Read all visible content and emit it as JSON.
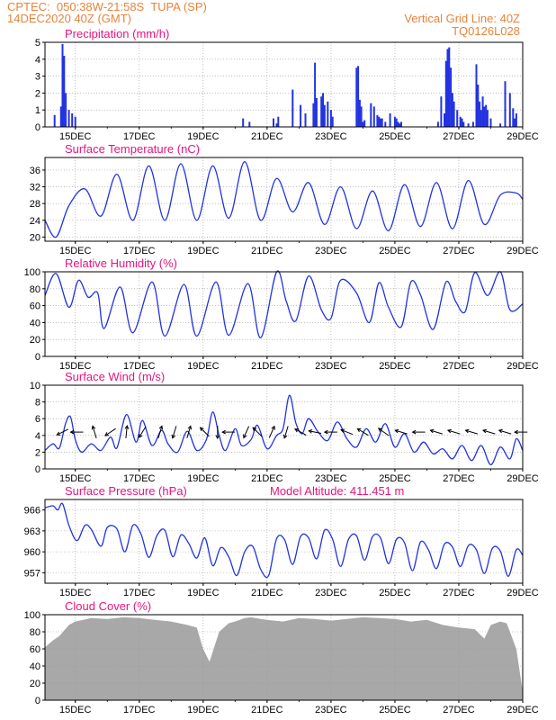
{
  "header": {
    "line1_left": "CPTEC:  050:38W-21:58S  TUPA (SP)",
    "line2_left": "14DEC2020 40Z (GMT)",
    "line1_right": "Vertical Grid Line: 40Z",
    "line2_right": "TQ0126L028"
  },
  "colors": {
    "header": "#e8833a",
    "title": "#e8137f",
    "series": "#2233e0",
    "cloud": "#a8a8a8",
    "grid": "#9a9a9a",
    "arrow": "#000000"
  },
  "x_axis": {
    "tick_labels": [
      "15DEC",
      "17DEC",
      "19DEC",
      "21DEC",
      "23DEC",
      "25DEC",
      "27DEC",
      "29DEC"
    ],
    "tick_days": [
      15,
      17,
      19,
      21,
      23,
      25,
      27,
      29
    ],
    "range_days": [
      14.05,
      29.0
    ]
  },
  "chart_data": [
    {
      "id": "precip",
      "type": "bar",
      "title": "Precipitation (mm/h)",
      "ylim": [
        0,
        5
      ],
      "yticks": [
        0,
        1,
        2,
        3,
        4,
        5
      ],
      "x_days": [
        14.35,
        14.55,
        14.6,
        14.65,
        14.7,
        14.8,
        14.9,
        15.0,
        20.25,
        20.45,
        21.2,
        21.3,
        21.35,
        21.8,
        22.05,
        22.2,
        22.45,
        22.5,
        22.55,
        22.7,
        22.75,
        22.8,
        22.9,
        23.0,
        23.05,
        23.8,
        23.85,
        23.9,
        23.95,
        24.0,
        24.05,
        24.25,
        24.35,
        24.45,
        24.5,
        24.55,
        24.6,
        24.7,
        24.85,
        25.0,
        25.05,
        25.1,
        25.15,
        25.2,
        26.35,
        26.45,
        26.55,
        26.6,
        26.65,
        26.7,
        26.75,
        26.8,
        26.85,
        26.95,
        27.05,
        27.1,
        27.15,
        27.3,
        27.45,
        27.55,
        27.6,
        27.65,
        27.7,
        27.75,
        27.8,
        27.85,
        27.9,
        28.0,
        28.3,
        28.45,
        28.6,
        28.7,
        28.75,
        28.8
      ],
      "values": [
        0.7,
        1.2,
        4.9,
        4.2,
        2.0,
        1.0,
        0.8,
        0.6,
        0.5,
        0.3,
        0.5,
        0.2,
        0.6,
        2.2,
        1.3,
        0.8,
        1.4,
        3.8,
        1.7,
        1.8,
        2.0,
        1.3,
        1.5,
        1.0,
        0.6,
        3.5,
        3.6,
        1.6,
        1.2,
        0.3,
        0.4,
        1.4,
        1.2,
        0.7,
        0.6,
        0.5,
        0.5,
        0.3,
        0.8,
        0.6,
        0.5,
        0.3,
        0.2,
        0.3,
        0.3,
        1.8,
        0.8,
        3.9,
        4.6,
        4.7,
        3.5,
        2.0,
        1.5,
        1.0,
        0.6,
        0.5,
        0.3,
        0.2,
        0.3,
        3.7,
        2.5,
        1.5,
        1.0,
        1.8,
        1.2,
        1.3,
        1.0,
        0.5,
        0.2,
        2.7,
        2.0,
        1.1,
        0.5,
        0.8
      ]
    },
    {
      "id": "temp",
      "type": "line",
      "title": "Surface Temperature (nC)",
      "ylim": [
        19,
        39
      ],
      "yticks": [
        20,
        24,
        28,
        32,
        36
      ],
      "x_days": [
        14.05,
        14.4,
        14.8,
        15.3,
        15.8,
        16.3,
        16.8,
        17.3,
        17.8,
        18.3,
        18.8,
        19.3,
        19.8,
        20.3,
        20.8,
        21.3,
        21.8,
        22.3,
        22.8,
        23.3,
        23.8,
        24.3,
        24.8,
        25.3,
        25.8,
        26.3,
        26.8,
        27.3,
        27.8,
        28.3,
        28.8,
        29.0
      ],
      "values": [
        24.0,
        20.0,
        27.5,
        31.5,
        25.0,
        35.0,
        24.0,
        37.0,
        24.0,
        37.5,
        24.0,
        37.0,
        24.5,
        38.0,
        24.0,
        34.0,
        26.0,
        33.0,
        23.0,
        32.0,
        22.0,
        31.0,
        21.5,
        32.5,
        22.5,
        33.0,
        22.0,
        33.5,
        23.0,
        30.0,
        30.5,
        29.0
      ]
    },
    {
      "id": "humidity",
      "type": "line",
      "title": "Relative Humidity (%)",
      "ylim": [
        0,
        100
      ],
      "yticks": [
        0,
        20,
        40,
        60,
        80,
        100
      ],
      "x_days": [
        14.05,
        14.4,
        14.8,
        15.1,
        15.4,
        15.7,
        15.9,
        16.4,
        16.8,
        17.4,
        17.8,
        18.4,
        18.8,
        19.4,
        19.8,
        20.4,
        20.8,
        21.3,
        21.6,
        21.9,
        22.3,
        22.7,
        23.0,
        23.3,
        23.8,
        24.2,
        24.5,
        24.8,
        25.2,
        25.5,
        25.8,
        26.2,
        26.6,
        26.9,
        27.2,
        27.5,
        27.9,
        28.3,
        28.6,
        29.0
      ],
      "values": [
        72.0,
        98.0,
        58.0,
        90.0,
        70.0,
        75.0,
        33.0,
        82.0,
        28.0,
        88.0,
        24.0,
        85.0,
        24.0,
        88.0,
        25.0,
        86.0,
        22.0,
        100.0,
        65.0,
        42.0,
        95.0,
        55.0,
        45.0,
        90.0,
        75.0,
        40.0,
        87.0,
        58.0,
        35.0,
        88.0,
        73.0,
        32.0,
        88.0,
        65.0,
        53.0,
        99.0,
        72.0,
        100.0,
        55.0,
        62.0
      ]
    },
    {
      "id": "wind",
      "type": "line",
      "title": "Surface Wind (m/s)",
      "ylim": [
        0,
        10
      ],
      "yticks": [
        0,
        2,
        4,
        6,
        8,
        10
      ],
      "x_days": [
        14.05,
        14.3,
        14.5,
        14.7,
        14.85,
        15.0,
        15.2,
        15.5,
        15.8,
        16.1,
        16.3,
        16.6,
        16.9,
        17.1,
        17.4,
        17.7,
        17.9,
        18.2,
        18.5,
        18.8,
        19.1,
        19.3,
        19.5,
        19.7,
        20.0,
        20.2,
        20.5,
        20.7,
        21.0,
        21.3,
        21.5,
        21.7,
        21.9,
        22.1,
        22.3,
        22.6,
        22.9,
        23.2,
        23.5,
        23.8,
        24.1,
        24.4,
        24.7,
        25.0,
        25.3,
        25.6,
        25.9,
        26.2,
        26.5,
        26.8,
        27.1,
        27.4,
        27.7,
        28.0,
        28.3,
        28.6,
        28.8,
        29.0
      ],
      "values": [
        2.2,
        3.0,
        2.5,
        5.5,
        6.2,
        3.5,
        2.0,
        3.0,
        2.2,
        3.8,
        2.5,
        6.5,
        3.2,
        5.8,
        2.8,
        4.6,
        3.0,
        2.0,
        4.5,
        2.2,
        3.5,
        6.8,
        4.0,
        2.2,
        4.8,
        2.8,
        3.5,
        5.2,
        2.4,
        4.0,
        4.8,
        8.8,
        5.5,
        4.2,
        6.0,
        4.4,
        3.4,
        5.6,
        3.6,
        2.6,
        4.8,
        3.2,
        5.4,
        2.6,
        4.2,
        2.0,
        3.2,
        1.8,
        2.4,
        1.2,
        2.8,
        1.0,
        2.8,
        0.5,
        2.6,
        1.2,
        3.6,
        2.2
      ],
      "arrows": [
        {
          "day": 14.6,
          "u": -1.0,
          "v": -0.5
        },
        {
          "day": 15.05,
          "u": -1.0,
          "v": 0.0
        },
        {
          "day": 15.6,
          "u": -0.3,
          "v": 1.0
        },
        {
          "day": 16.1,
          "u": -0.9,
          "v": -0.6
        },
        {
          "day": 16.6,
          "u": 0.1,
          "v": 1.0
        },
        {
          "day": 17.1,
          "u": -0.5,
          "v": -0.8
        },
        {
          "day": 17.65,
          "u": 0.3,
          "v": 1.0
        },
        {
          "day": 18.1,
          "u": -0.3,
          "v": -1.0
        },
        {
          "day": 18.55,
          "u": 0.3,
          "v": 1.0
        },
        {
          "day": 19.05,
          "u": -0.6,
          "v": 0.6
        },
        {
          "day": 19.45,
          "u": 0.0,
          "v": -1.0
        },
        {
          "day": 19.8,
          "u": -1.0,
          "v": 0.0
        },
        {
          "day": 20.35,
          "u": -0.4,
          "v": -0.9
        },
        {
          "day": 20.7,
          "u": -0.7,
          "v": 0.7
        },
        {
          "day": 21.15,
          "u": 0.4,
          "v": 0.9
        },
        {
          "day": 21.6,
          "u": -0.3,
          "v": -1.0
        },
        {
          "day": 22.05,
          "u": -0.9,
          "v": 0.5
        },
        {
          "day": 22.5,
          "u": -1.0,
          "v": 0.2
        },
        {
          "day": 23.0,
          "u": -1.0,
          "v": 0.0
        },
        {
          "day": 23.5,
          "u": -1.0,
          "v": 0.4
        },
        {
          "day": 24.0,
          "u": -1.0,
          "v": 0.6
        },
        {
          "day": 24.65,
          "u": -0.7,
          "v": 0.5
        },
        {
          "day": 25.2,
          "u": -1.0,
          "v": 0.3
        },
        {
          "day": 25.75,
          "u": -1.0,
          "v": 0.0
        },
        {
          "day": 26.3,
          "u": -1.0,
          "v": 0.3
        },
        {
          "day": 26.85,
          "u": -1.0,
          "v": 0.3
        },
        {
          "day": 27.4,
          "u": -1.0,
          "v": 0.3
        },
        {
          "day": 27.95,
          "u": -1.0,
          "v": 0.3
        },
        {
          "day": 28.45,
          "u": -1.0,
          "v": 0.3
        },
        {
          "day": 28.95,
          "u": -1.0,
          "v": 0.0
        }
      ]
    },
    {
      "id": "pressure",
      "type": "line",
      "title": "Surface Pressure (hPa)",
      "subtitle": "Model Altitude: 411.451  m",
      "ylim": [
        955.5,
        967.5
      ],
      "yticks": [
        957,
        960,
        963,
        966
      ],
      "x_days": [
        14.05,
        14.3,
        14.45,
        14.6,
        14.8,
        15.05,
        15.3,
        15.5,
        15.8,
        16.0,
        16.3,
        16.55,
        16.8,
        17.05,
        17.3,
        17.55,
        17.8,
        18.05,
        18.3,
        18.55,
        18.8,
        19.05,
        19.3,
        19.55,
        19.8,
        20.05,
        20.3,
        20.55,
        20.8,
        21.05,
        21.3,
        21.55,
        21.8,
        22.05,
        22.3,
        22.55,
        22.8,
        23.05,
        23.3,
        23.55,
        23.8,
        24.05,
        24.3,
        24.55,
        24.8,
        25.05,
        25.3,
        25.55,
        25.8,
        26.05,
        26.3,
        26.55,
        26.8,
        27.05,
        27.3,
        27.55,
        27.8,
        28.05,
        28.3,
        28.55,
        28.8,
        29.0
      ],
      "values": [
        966.3,
        966.6,
        966.0,
        966.9,
        963.8,
        961.6,
        963.8,
        963.2,
        960.8,
        963.5,
        963.3,
        960.0,
        963.8,
        962.6,
        959.2,
        962.3,
        963.1,
        959.3,
        962.4,
        961.2,
        959.1,
        962.0,
        958.0,
        960.6,
        959.3,
        956.6,
        960.0,
        960.8,
        957.5,
        956.6,
        961.9,
        961.7,
        958.2,
        962.2,
        962.0,
        959.0,
        963.1,
        961.8,
        957.9,
        961.8,
        962.3,
        958.8,
        962.2,
        962.0,
        958.3,
        961.8,
        961.3,
        957.3,
        961.4,
        960.3,
        957.6,
        961.1,
        960.7,
        957.9,
        960.9,
        960.3,
        956.9,
        960.5,
        960.1,
        956.5,
        960.3,
        959.5
      ]
    },
    {
      "id": "cloud",
      "type": "area",
      "title": "Cloud Cover (%)",
      "ylim": [
        0,
        100
      ],
      "yticks": [
        0,
        20,
        40,
        60,
        80,
        100
      ],
      "x_days": [
        14.05,
        14.3,
        14.5,
        14.8,
        15.0,
        15.5,
        16.0,
        16.5,
        17.0,
        17.5,
        18.0,
        18.5,
        18.8,
        19.0,
        19.2,
        19.5,
        19.8,
        20.0,
        20.3,
        20.5,
        20.8,
        21.0,
        21.5,
        22.0,
        22.5,
        23.0,
        23.5,
        24.0,
        24.5,
        25.0,
        25.5,
        26.0,
        26.5,
        27.0,
        27.5,
        27.8,
        28.0,
        28.3,
        28.5,
        28.8,
        29.0
      ],
      "values": [
        62.0,
        70.0,
        75.0,
        88.0,
        92.0,
        96.0,
        95.0,
        97.0,
        96.0,
        94.0,
        92.0,
        88.0,
        85.0,
        60.0,
        45.0,
        80.0,
        90.0,
        92.0,
        96.0,
        97.0,
        95.0,
        94.0,
        92.0,
        96.0,
        95.0,
        93.0,
        95.0,
        97.0,
        96.0,
        95.0,
        92.0,
        94.0,
        88.0,
        85.0,
        83.0,
        72.0,
        88.0,
        92.0,
        90.0,
        60.0,
        10.0
      ]
    }
  ]
}
